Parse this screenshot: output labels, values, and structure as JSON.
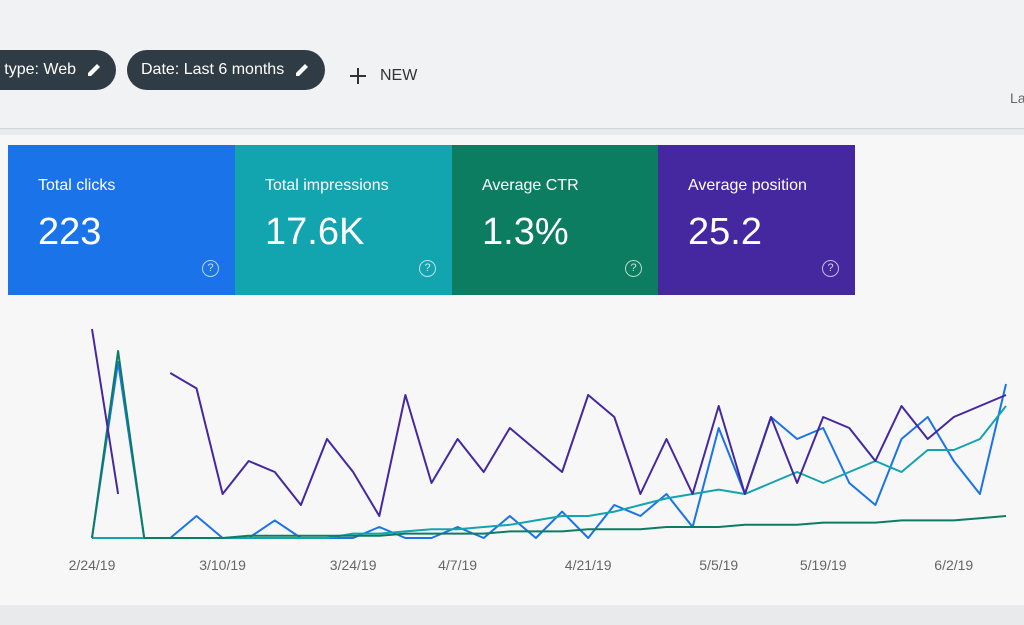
{
  "filters": [
    {
      "label": "type: Web"
    },
    {
      "label": "Date: Last 6 months"
    }
  ],
  "new_button": "NEW",
  "corner_text": "La",
  "chart_data": {
    "type": "line",
    "categories": [
      "2/24/19",
      null,
      null,
      null,
      null,
      "3/10/19",
      null,
      null,
      null,
      null,
      "3/24/19",
      null,
      null,
      null,
      "4/7/19",
      null,
      null,
      null,
      null,
      "4/21/19",
      null,
      null,
      null,
      null,
      "5/5/19",
      null,
      null,
      null,
      "5/19/19",
      null,
      null,
      null,
      null,
      "6/2/19",
      null,
      null
    ],
    "series": [
      {
        "name": "Total clicks",
        "total": "223",
        "color": "#1a73e8",
        "values": [
          0,
          80,
          0,
          0,
          10,
          0,
          0,
          8,
          0,
          0,
          0,
          5,
          0,
          0,
          5,
          0,
          10,
          0,
          12,
          0,
          15,
          10,
          20,
          5,
          50,
          20,
          55,
          45,
          50,
          25,
          15,
          45,
          55,
          35,
          20,
          70
        ]
      },
      {
        "name": "Total impressions",
        "total": "17.6K",
        "color": "#12a4af",
        "values": [
          0,
          0,
          0,
          0,
          0,
          0,
          0,
          0,
          0,
          0,
          2,
          2,
          3,
          4,
          4,
          5,
          6,
          8,
          10,
          10,
          12,
          15,
          18,
          20,
          22,
          20,
          25,
          30,
          25,
          30,
          35,
          30,
          40,
          40,
          45,
          60
        ]
      },
      {
        "name": "Average CTR",
        "total": "1.3%",
        "color": "#0d7d62",
        "values": [
          0,
          85,
          0,
          0,
          0,
          0,
          1,
          1,
          1,
          1,
          1,
          1,
          2,
          2,
          2,
          2,
          3,
          3,
          3,
          4,
          4,
          4,
          5,
          5,
          5,
          6,
          6,
          6,
          7,
          7,
          7,
          8,
          8,
          8,
          9,
          10
        ]
      },
      {
        "name": "Average position",
        "total": "25.2",
        "color": "#4527a0",
        "values": [
          95,
          20,
          null,
          75,
          68,
          20,
          35,
          30,
          15,
          45,
          30,
          10,
          65,
          25,
          45,
          30,
          50,
          40,
          30,
          65,
          55,
          20,
          45,
          20,
          60,
          20,
          55,
          25,
          55,
          50,
          35,
          60,
          45,
          55,
          60,
          65
        ]
      }
    ]
  }
}
